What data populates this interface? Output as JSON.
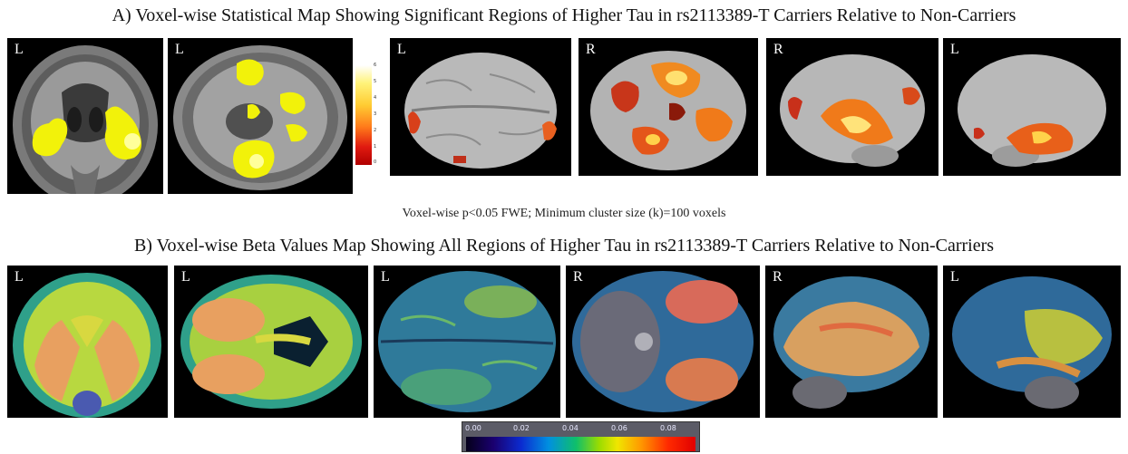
{
  "panel_a": {
    "title": "A) Voxel-wise Statistical Map Showing Significant Regions of Higher Tau in rs2113389-T Carriers Relative to Non-Carriers",
    "caption": "Voxel-wise p<0.05 FWE; Minimum cluster size (k)=100 voxels",
    "view_labels": [
      "L",
      "L",
      "L",
      "R",
      "R",
      "L"
    ],
    "scale_ticks": [
      "6",
      "5",
      "4",
      "3",
      "2",
      "1",
      "0"
    ],
    "colormap": [
      "#b00000",
      "#e01a10",
      "#ff7a1a",
      "#ffcc33",
      "#fff37a",
      "#ffffff"
    ]
  },
  "panel_b": {
    "title": "B) Voxel-wise Beta Values Map Showing All Regions of Higher Tau in rs2113389-T Carriers Relative to Non-Carriers",
    "view_labels": [
      "L",
      "L",
      "L",
      "R",
      "R",
      "L"
    ],
    "colorbar_ticks": [
      "0.00",
      "0.02",
      "0.04",
      "0.06",
      "0.08"
    ],
    "colorbar_range": [
      0.0,
      0.09
    ],
    "colormap": [
      "#05001a",
      "#0b2bd0",
      "#0fbf6a",
      "#f0e600",
      "#ff9a00",
      "#e00000"
    ]
  }
}
